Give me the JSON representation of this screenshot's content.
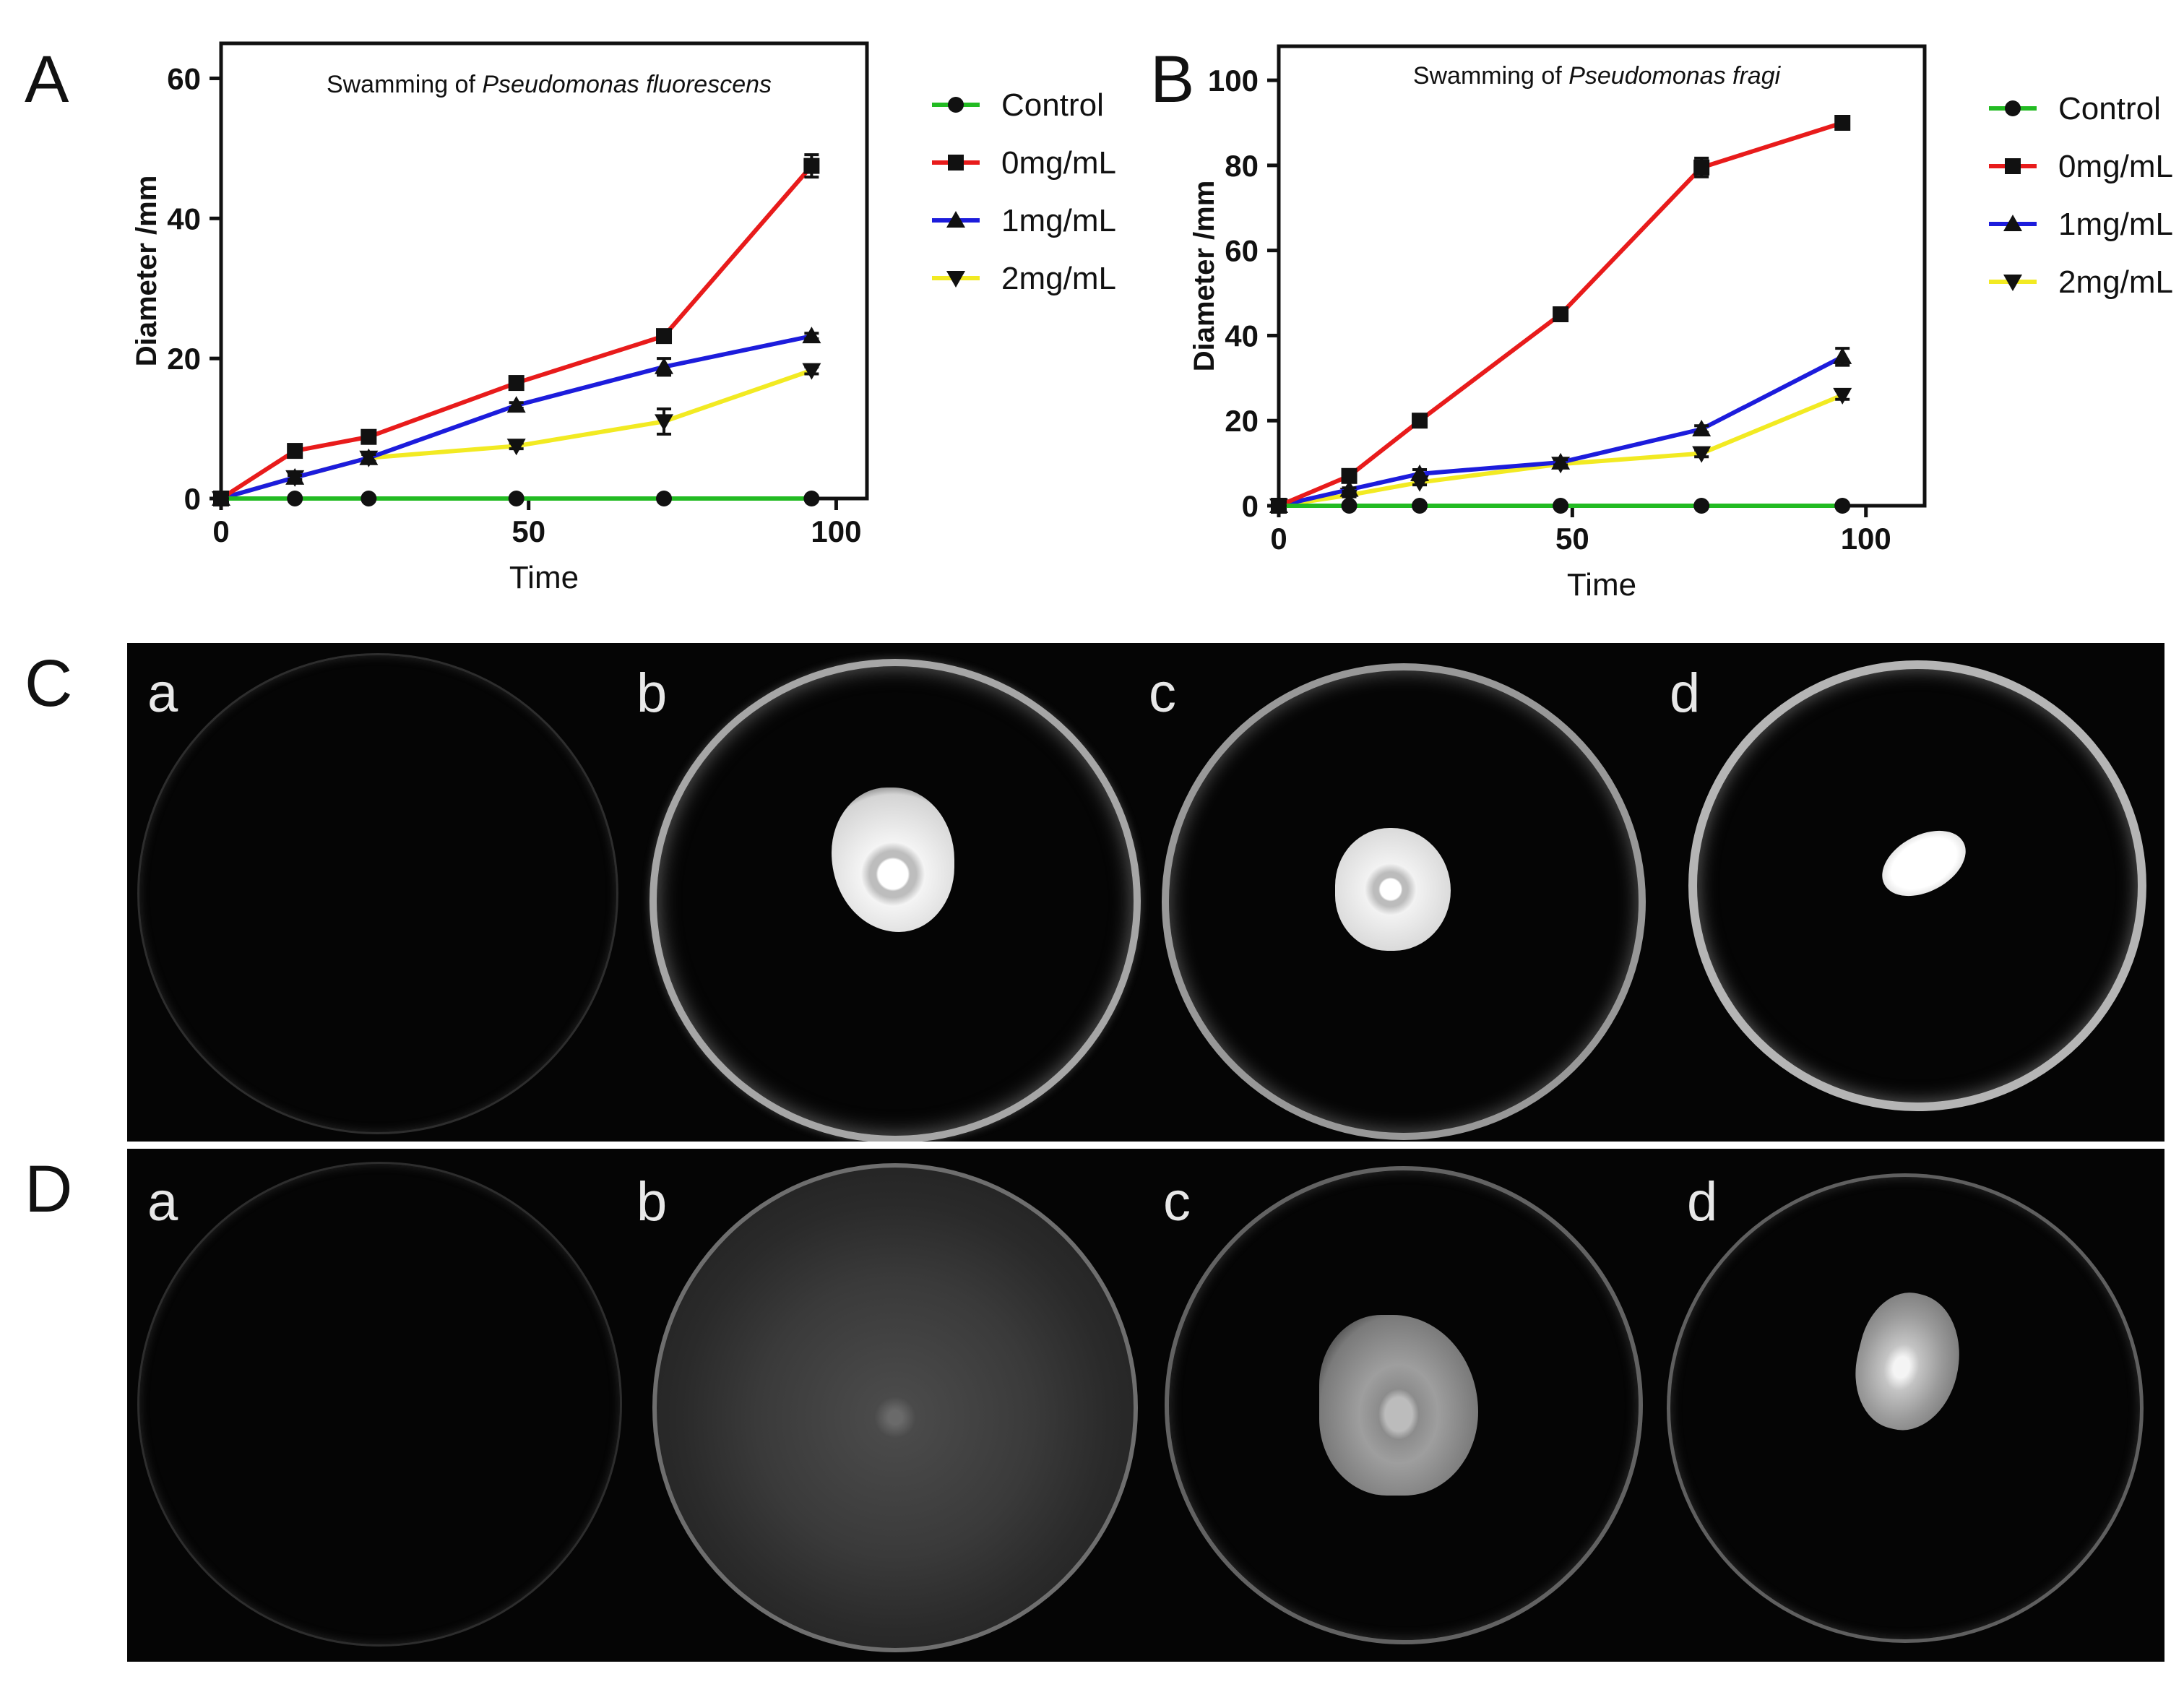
{
  "panel_labels": {
    "A": "A",
    "B": "B",
    "C": "C",
    "D": "D"
  },
  "legend_entries": [
    {
      "name": "Control",
      "color": "#22bb22",
      "marker": "circle"
    },
    {
      "name": "0mg/mL",
      "color": "#e81b1b",
      "marker": "square"
    },
    {
      "name": "1mg/mL",
      "color": "#1c1cdc",
      "marker": "triangle-up"
    },
    {
      "name": "2mg/mL",
      "color": "#f2ea22",
      "marker": "triangle-down"
    }
  ],
  "chart_data": [
    {
      "panel": "A",
      "type": "line",
      "title_prefix": "Swamming of ",
      "title_species": "Pseudomonas fluorescens",
      "xlabel": "Time",
      "ylabel": "Diameter /mm",
      "xlim": [
        0,
        105
      ],
      "ylim": [
        0,
        65
      ],
      "xticks": [
        0,
        50,
        100
      ],
      "yticks": [
        0,
        20,
        40,
        60
      ],
      "x": [
        0,
        12,
        24,
        48,
        72,
        96
      ],
      "series": [
        {
          "name": "Control",
          "values": [
            0,
            0,
            0,
            0,
            0,
            0
          ],
          "errors": [
            0,
            0,
            0,
            0,
            0,
            0
          ]
        },
        {
          "name": "0mg/mL",
          "values": [
            0,
            6.8,
            8.8,
            16.5,
            23.2,
            47.5
          ],
          "errors": [
            0,
            0.4,
            0.4,
            0.4,
            0.5,
            1.6
          ]
        },
        {
          "name": "1mg/mL",
          "values": [
            0,
            3.0,
            5.8,
            13.3,
            18.8,
            23.2
          ],
          "errors": [
            0,
            0.3,
            0.5,
            0.4,
            1.2,
            0.4
          ]
        },
        {
          "name": "2mg/mL",
          "values": [
            0,
            3.0,
            5.8,
            7.5,
            11.0,
            18.3
          ],
          "errors": [
            0,
            0.3,
            0.5,
            0.4,
            1.8,
            0.5
          ]
        }
      ]
    },
    {
      "panel": "B",
      "type": "line",
      "title_prefix": "Swamming of ",
      "title_species": "Pseudomonas fragi",
      "xlabel": "Time",
      "ylabel": "Diameter /mm",
      "xlim": [
        0,
        110
      ],
      "ylim": [
        0,
        108
      ],
      "xticks": [
        0,
        50,
        100
      ],
      "yticks": [
        0,
        20,
        40,
        60,
        80,
        100
      ],
      "x": [
        0,
        12,
        24,
        48,
        72,
        96
      ],
      "series": [
        {
          "name": "Control",
          "values": [
            0,
            0,
            0,
            0,
            0,
            0
          ],
          "errors": [
            0,
            0,
            0,
            0,
            0,
            0
          ]
        },
        {
          "name": "0mg/mL",
          "values": [
            0,
            7.0,
            20.0,
            45.0,
            79.5,
            90.0
          ],
          "errors": [
            0,
            0.6,
            0.6,
            1.2,
            2.2,
            0.6
          ]
        },
        {
          "name": "1mg/mL",
          "values": [
            0,
            3.8,
            7.5,
            10.2,
            18.0,
            35.0
          ],
          "errors": [
            0,
            0.4,
            1.0,
            0.6,
            0.8,
            2.0
          ]
        },
        {
          "name": "2mg/mL",
          "values": [
            0,
            2.5,
            5.5,
            9.8,
            12.3,
            26.0
          ],
          "errors": [
            0,
            0.4,
            0.6,
            0.6,
            0.8,
            1.0
          ]
        }
      ]
    }
  ],
  "photo_rows": [
    {
      "panel": "C",
      "dishes": [
        {
          "label": "a",
          "growth": "none"
        },
        {
          "label": "b",
          "growth": "bright colony"
        },
        {
          "label": "c",
          "growth": "bright colony"
        },
        {
          "label": "d",
          "growth": "small bright colony"
        }
      ]
    },
    {
      "panel": "D",
      "dishes": [
        {
          "label": "a",
          "growth": "none"
        },
        {
          "label": "b",
          "growth": "diffuse lawn"
        },
        {
          "label": "c",
          "growth": "spreading colony"
        },
        {
          "label": "d",
          "growth": "colony"
        }
      ]
    }
  ]
}
